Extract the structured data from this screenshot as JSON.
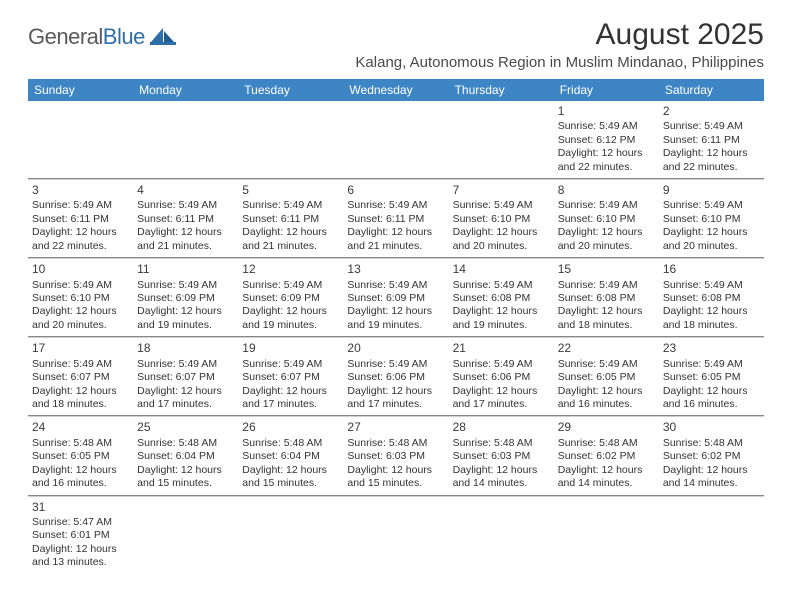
{
  "brand": {
    "part1": "General",
    "part2": "Blue"
  },
  "title": "August 2025",
  "subtitle": "Kalang, Autonomous Region in Muslim Mindanao, Philippines",
  "header_bg": "#3e85c6",
  "header_fg": "#ffffff",
  "text_color": "#333333",
  "grid_line": "#cfcfcf",
  "row_divider": "#888888",
  "logo_gray": "#5a5a5a",
  "logo_blue": "#2f6fa8",
  "days": [
    "Sunday",
    "Monday",
    "Tuesday",
    "Wednesday",
    "Thursday",
    "Friday",
    "Saturday"
  ],
  "weeks": [
    [
      null,
      null,
      null,
      null,
      null,
      {
        "n": "1",
        "sr": "Sunrise: 5:49 AM",
        "ss": "Sunset: 6:12 PM",
        "dl1": "Daylight: 12 hours",
        "dl2": "and 22 minutes."
      },
      {
        "n": "2",
        "sr": "Sunrise: 5:49 AM",
        "ss": "Sunset: 6:11 PM",
        "dl1": "Daylight: 12 hours",
        "dl2": "and 22 minutes."
      }
    ],
    [
      {
        "n": "3",
        "sr": "Sunrise: 5:49 AM",
        "ss": "Sunset: 6:11 PM",
        "dl1": "Daylight: 12 hours",
        "dl2": "and 22 minutes."
      },
      {
        "n": "4",
        "sr": "Sunrise: 5:49 AM",
        "ss": "Sunset: 6:11 PM",
        "dl1": "Daylight: 12 hours",
        "dl2": "and 21 minutes."
      },
      {
        "n": "5",
        "sr": "Sunrise: 5:49 AM",
        "ss": "Sunset: 6:11 PM",
        "dl1": "Daylight: 12 hours",
        "dl2": "and 21 minutes."
      },
      {
        "n": "6",
        "sr": "Sunrise: 5:49 AM",
        "ss": "Sunset: 6:11 PM",
        "dl1": "Daylight: 12 hours",
        "dl2": "and 21 minutes."
      },
      {
        "n": "7",
        "sr": "Sunrise: 5:49 AM",
        "ss": "Sunset: 6:10 PM",
        "dl1": "Daylight: 12 hours",
        "dl2": "and 20 minutes."
      },
      {
        "n": "8",
        "sr": "Sunrise: 5:49 AM",
        "ss": "Sunset: 6:10 PM",
        "dl1": "Daylight: 12 hours",
        "dl2": "and 20 minutes."
      },
      {
        "n": "9",
        "sr": "Sunrise: 5:49 AM",
        "ss": "Sunset: 6:10 PM",
        "dl1": "Daylight: 12 hours",
        "dl2": "and 20 minutes."
      }
    ],
    [
      {
        "n": "10",
        "sr": "Sunrise: 5:49 AM",
        "ss": "Sunset: 6:10 PM",
        "dl1": "Daylight: 12 hours",
        "dl2": "and 20 minutes."
      },
      {
        "n": "11",
        "sr": "Sunrise: 5:49 AM",
        "ss": "Sunset: 6:09 PM",
        "dl1": "Daylight: 12 hours",
        "dl2": "and 19 minutes."
      },
      {
        "n": "12",
        "sr": "Sunrise: 5:49 AM",
        "ss": "Sunset: 6:09 PM",
        "dl1": "Daylight: 12 hours",
        "dl2": "and 19 minutes."
      },
      {
        "n": "13",
        "sr": "Sunrise: 5:49 AM",
        "ss": "Sunset: 6:09 PM",
        "dl1": "Daylight: 12 hours",
        "dl2": "and 19 minutes."
      },
      {
        "n": "14",
        "sr": "Sunrise: 5:49 AM",
        "ss": "Sunset: 6:08 PM",
        "dl1": "Daylight: 12 hours",
        "dl2": "and 19 minutes."
      },
      {
        "n": "15",
        "sr": "Sunrise: 5:49 AM",
        "ss": "Sunset: 6:08 PM",
        "dl1": "Daylight: 12 hours",
        "dl2": "and 18 minutes."
      },
      {
        "n": "16",
        "sr": "Sunrise: 5:49 AM",
        "ss": "Sunset: 6:08 PM",
        "dl1": "Daylight: 12 hours",
        "dl2": "and 18 minutes."
      }
    ],
    [
      {
        "n": "17",
        "sr": "Sunrise: 5:49 AM",
        "ss": "Sunset: 6:07 PM",
        "dl1": "Daylight: 12 hours",
        "dl2": "and 18 minutes."
      },
      {
        "n": "18",
        "sr": "Sunrise: 5:49 AM",
        "ss": "Sunset: 6:07 PM",
        "dl1": "Daylight: 12 hours",
        "dl2": "and 17 minutes."
      },
      {
        "n": "19",
        "sr": "Sunrise: 5:49 AM",
        "ss": "Sunset: 6:07 PM",
        "dl1": "Daylight: 12 hours",
        "dl2": "and 17 minutes."
      },
      {
        "n": "20",
        "sr": "Sunrise: 5:49 AM",
        "ss": "Sunset: 6:06 PM",
        "dl1": "Daylight: 12 hours",
        "dl2": "and 17 minutes."
      },
      {
        "n": "21",
        "sr": "Sunrise: 5:49 AM",
        "ss": "Sunset: 6:06 PM",
        "dl1": "Daylight: 12 hours",
        "dl2": "and 17 minutes."
      },
      {
        "n": "22",
        "sr": "Sunrise: 5:49 AM",
        "ss": "Sunset: 6:05 PM",
        "dl1": "Daylight: 12 hours",
        "dl2": "and 16 minutes."
      },
      {
        "n": "23",
        "sr": "Sunrise: 5:49 AM",
        "ss": "Sunset: 6:05 PM",
        "dl1": "Daylight: 12 hours",
        "dl2": "and 16 minutes."
      }
    ],
    [
      {
        "n": "24",
        "sr": "Sunrise: 5:48 AM",
        "ss": "Sunset: 6:05 PM",
        "dl1": "Daylight: 12 hours",
        "dl2": "and 16 minutes."
      },
      {
        "n": "25",
        "sr": "Sunrise: 5:48 AM",
        "ss": "Sunset: 6:04 PM",
        "dl1": "Daylight: 12 hours",
        "dl2": "and 15 minutes."
      },
      {
        "n": "26",
        "sr": "Sunrise: 5:48 AM",
        "ss": "Sunset: 6:04 PM",
        "dl1": "Daylight: 12 hours",
        "dl2": "and 15 minutes."
      },
      {
        "n": "27",
        "sr": "Sunrise: 5:48 AM",
        "ss": "Sunset: 6:03 PM",
        "dl1": "Daylight: 12 hours",
        "dl2": "and 15 minutes."
      },
      {
        "n": "28",
        "sr": "Sunrise: 5:48 AM",
        "ss": "Sunset: 6:03 PM",
        "dl1": "Daylight: 12 hours",
        "dl2": "and 14 minutes."
      },
      {
        "n": "29",
        "sr": "Sunrise: 5:48 AM",
        "ss": "Sunset: 6:02 PM",
        "dl1": "Daylight: 12 hours",
        "dl2": "and 14 minutes."
      },
      {
        "n": "30",
        "sr": "Sunrise: 5:48 AM",
        "ss": "Sunset: 6:02 PM",
        "dl1": "Daylight: 12 hours",
        "dl2": "and 14 minutes."
      }
    ],
    [
      {
        "n": "31",
        "sr": "Sunrise: 5:47 AM",
        "ss": "Sunset: 6:01 PM",
        "dl1": "Daylight: 12 hours",
        "dl2": "and 13 minutes."
      },
      null,
      null,
      null,
      null,
      null,
      null
    ]
  ]
}
